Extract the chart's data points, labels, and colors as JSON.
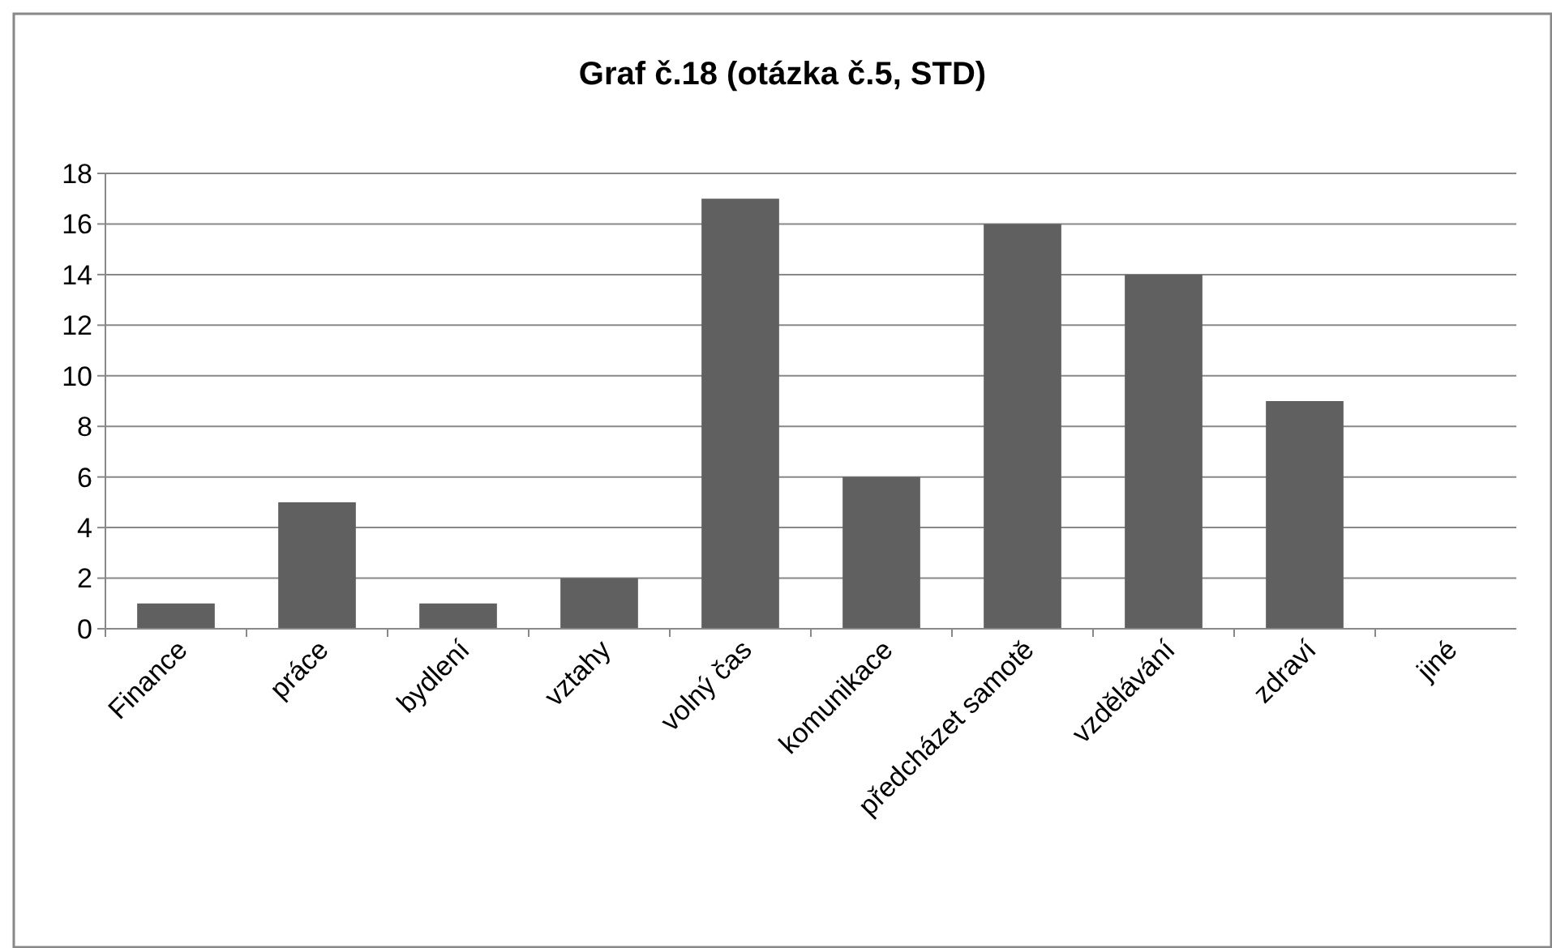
{
  "chart_data": {
    "type": "bar",
    "title": "Graf č.18 (otázka č.5, STD)",
    "categories": [
      "Finance",
      "práce",
      "bydlení",
      "vztahy",
      "volný čas",
      "komunikace",
      "předcházet samotě",
      "vzdělávání",
      "zdraví",
      "jiné"
    ],
    "values": [
      1,
      5,
      1,
      2,
      17,
      6,
      16,
      14,
      9,
      0
    ],
    "color": "#606060",
    "ylim": [
      0,
      18
    ],
    "yticks": [
      0,
      2,
      4,
      6,
      8,
      10,
      12,
      14,
      16,
      18
    ],
    "grid": "y"
  }
}
